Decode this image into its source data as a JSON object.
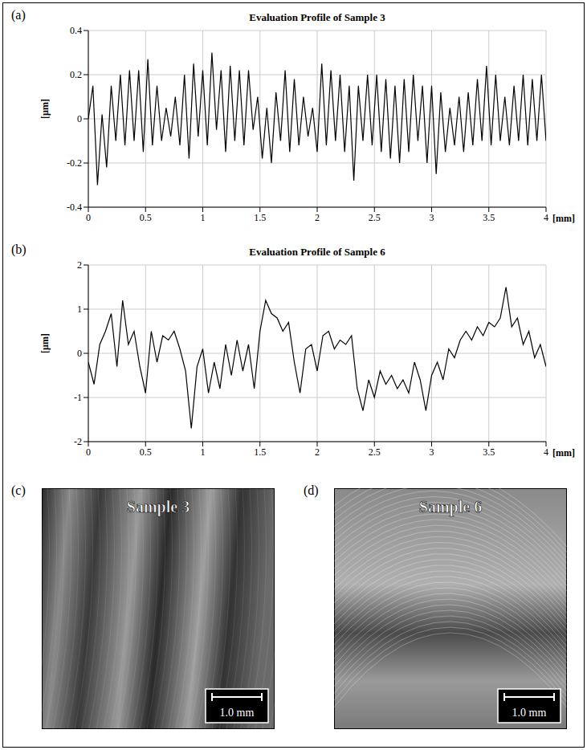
{
  "chart_data": [
    {
      "label": "(a)",
      "type": "line",
      "title": "Evaluation Profile of Sample 3",
      "x_label": "[mm]",
      "y_label": "[µm]",
      "color": "#000000",
      "grid": true,
      "xlim": [
        0,
        4
      ],
      "xticks": [
        0,
        0.5,
        1,
        1.5,
        2,
        2.5,
        3,
        3.5,
        4
      ],
      "ylim": [
        -0.4,
        0.4
      ],
      "yticks": [
        -0.4,
        -0.2,
        0,
        0.2,
        0.4
      ],
      "x": [
        0,
        0.04,
        0.08,
        0.12,
        0.16,
        0.2,
        0.24,
        0.28,
        0.32,
        0.36,
        0.4,
        0.44,
        0.48,
        0.52,
        0.56,
        0.6,
        0.64,
        0.68,
        0.72,
        0.76,
        0.8,
        0.84,
        0.88,
        0.92,
        0.96,
        1,
        1.04,
        1.08,
        1.12,
        1.16,
        1.2,
        1.24,
        1.28,
        1.32,
        1.36,
        1.4,
        1.44,
        1.48,
        1.52,
        1.56,
        1.6,
        1.64,
        1.68,
        1.72,
        1.76,
        1.8,
        1.84,
        1.88,
        1.92,
        1.96,
        2,
        2.04,
        2.08,
        2.12,
        2.16,
        2.2,
        2.24,
        2.28,
        2.32,
        2.36,
        2.4,
        2.44,
        2.48,
        2.52,
        2.56,
        2.6,
        2.64,
        2.68,
        2.72,
        2.76,
        2.8,
        2.84,
        2.88,
        2.92,
        2.96,
        3,
        3.04,
        3.08,
        3.12,
        3.16,
        3.2,
        3.24,
        3.28,
        3.32,
        3.36,
        3.4,
        3.44,
        3.48,
        3.52,
        3.56,
        3.6,
        3.64,
        3.68,
        3.72,
        3.76,
        3.8,
        3.84,
        3.88,
        3.92,
        3.96,
        4
      ],
      "values": [
        0,
        0.15,
        -0.3,
        0.02,
        -0.22,
        0.15,
        -0.1,
        0.2,
        -0.12,
        0.22,
        -0.1,
        0.22,
        -0.15,
        0.27,
        -0.12,
        0.15,
        -0.1,
        0.05,
        -0.08,
        0.1,
        -0.12,
        0.2,
        -0.18,
        0.25,
        -0.08,
        0.22,
        -0.12,
        0.3,
        -0.05,
        0.22,
        -0.15,
        0.24,
        -0.1,
        0.22,
        -0.12,
        0.22,
        -0.05,
        0.1,
        -0.18,
        0.05,
        -0.2,
        0.12,
        -0.1,
        0.22,
        -0.15,
        0.18,
        -0.12,
        0.1,
        -0.08,
        0.05,
        -0.15,
        0.25,
        -0.12,
        0.22,
        -0.1,
        0.2,
        -0.15,
        0.15,
        -0.28,
        0.15,
        -0.1,
        0.2,
        -0.12,
        0.2,
        -0.15,
        0.18,
        -0.18,
        0.15,
        -0.2,
        0.18,
        -0.15,
        0.2,
        -0.1,
        0.15,
        -0.2,
        0.15,
        -0.25,
        0.12,
        -0.15,
        0.05,
        -0.12,
        0.1,
        -0.15,
        0.12,
        -0.12,
        0.18,
        -0.1,
        0.24,
        -0.12,
        0.2,
        -0.1,
        0.1,
        -0.12,
        0.15,
        -0.1,
        0.2,
        -0.12,
        0.18,
        -0.1,
        0.2,
        -0.1
      ]
    },
    {
      "label": "(b)",
      "type": "line",
      "title": "Evaluation Profile of Sample 6",
      "x_label": "[mm]",
      "y_label": "[µm]",
      "color": "#000000",
      "grid": true,
      "xlim": [
        0,
        4
      ],
      "xticks": [
        0,
        0.5,
        1,
        1.5,
        2,
        2.5,
        3,
        3.5,
        4
      ],
      "ylim": [
        -2,
        2
      ],
      "yticks": [
        -2,
        -1,
        0,
        1,
        2
      ],
      "x": [
        0,
        0.05,
        0.1,
        0.15,
        0.2,
        0.25,
        0.3,
        0.35,
        0.4,
        0.45,
        0.5,
        0.55,
        0.6,
        0.65,
        0.7,
        0.75,
        0.8,
        0.85,
        0.9,
        0.95,
        1,
        1.05,
        1.1,
        1.15,
        1.2,
        1.25,
        1.3,
        1.35,
        1.4,
        1.45,
        1.5,
        1.55,
        1.6,
        1.65,
        1.7,
        1.75,
        1.8,
        1.85,
        1.9,
        1.95,
        2,
        2.05,
        2.1,
        2.15,
        2.2,
        2.25,
        2.3,
        2.35,
        2.4,
        2.45,
        2.5,
        2.55,
        2.6,
        2.65,
        2.7,
        2.75,
        2.8,
        2.85,
        2.9,
        2.95,
        3,
        3.05,
        3.1,
        3.15,
        3.2,
        3.25,
        3.3,
        3.35,
        3.4,
        3.45,
        3.5,
        3.55,
        3.6,
        3.65,
        3.7,
        3.75,
        3.8,
        3.85,
        3.9,
        3.95,
        4
      ],
      "values": [
        -0.2,
        -0.7,
        0.2,
        0.5,
        0.9,
        -0.3,
        1.2,
        0.2,
        0.5,
        -0.3,
        -0.9,
        0.5,
        -0.2,
        0.4,
        0.3,
        0.5,
        0.1,
        -0.4,
        -1.7,
        -0.3,
        0.1,
        -0.9,
        -0.2,
        -0.8,
        0.2,
        -0.5,
        0.3,
        -0.4,
        0.2,
        -0.8,
        0.5,
        1.2,
        0.9,
        0.8,
        0.5,
        0.7,
        -0.2,
        -0.9,
        0.1,
        0.2,
        -0.4,
        0.4,
        0.5,
        0.1,
        0.3,
        0.2,
        0.4,
        -0.8,
        -1.3,
        -0.6,
        -1,
        -0.4,
        -0.7,
        -0.5,
        -0.8,
        -0.6,
        -0.9,
        -0.2,
        -0.6,
        -1.3,
        -0.5,
        -0.2,
        -0.6,
        0.1,
        -0.1,
        0.3,
        0.5,
        0.3,
        0.6,
        0.4,
        0.7,
        0.6,
        0.8,
        1.5,
        0.6,
        0.8,
        0.2,
        0.5,
        -0.1,
        0.2,
        -0.3
      ]
    }
  ],
  "images": [
    {
      "label": "(c)",
      "title": "Sample 3",
      "scale_bar": "1.0 mm"
    },
    {
      "label": "(d)",
      "title": "Sample 6",
      "scale_bar": "1.0 mm"
    }
  ]
}
